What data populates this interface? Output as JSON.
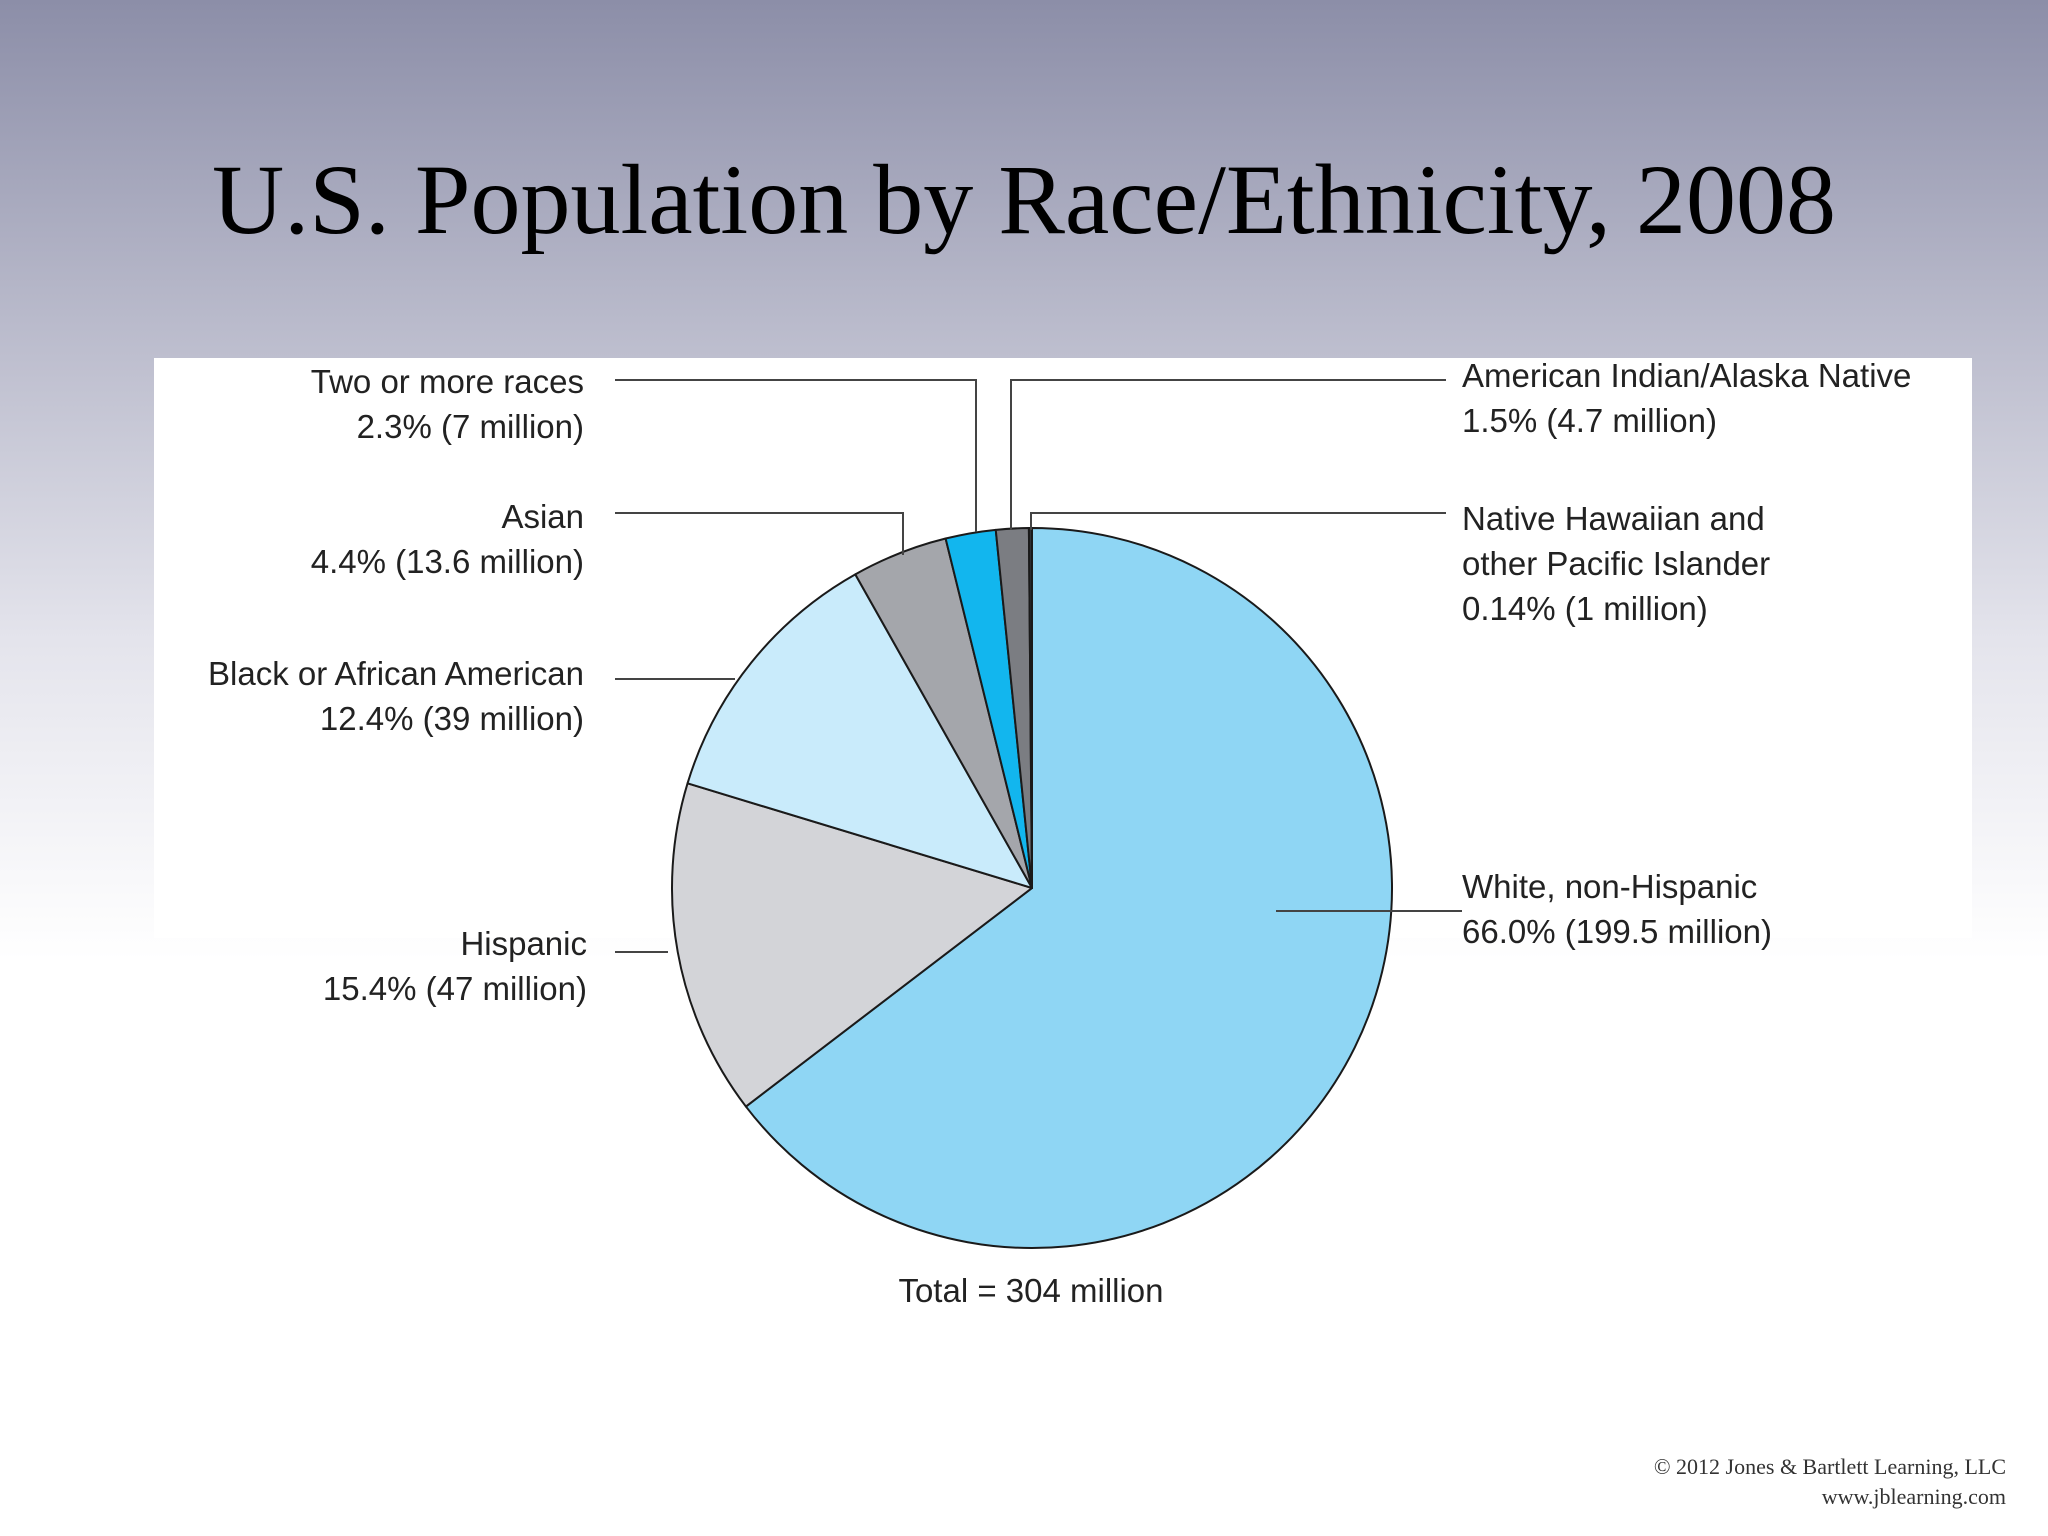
{
  "title": "U.S. Population by Race/Ethnicity, 2008",
  "chart_data": {
    "type": "pie",
    "title": "U.S. Population by Race/Ethnicity, 2008",
    "total_label": "Total = 304 million",
    "slices": [
      {
        "name": "White, non-Hispanic",
        "percent": 66.0,
        "value_millions": 199.5,
        "label_lines": [
          "White, non-Hispanic",
          "66.0% (199.5 million)"
        ],
        "color": "#8fd6f4",
        "label_side": "right"
      },
      {
        "name": "Hispanic",
        "percent": 15.4,
        "value_millions": 47,
        "label_lines": [
          "Hispanic",
          "15.4% (47 million)"
        ],
        "color": "#d3d4d8",
        "label_side": "left"
      },
      {
        "name": "Black or African American",
        "percent": 12.4,
        "value_millions": 39,
        "label_lines": [
          "Black or African American",
          "12.4% (39 million)"
        ],
        "color": "#c9ebfb",
        "label_side": "left"
      },
      {
        "name": "Asian",
        "percent": 4.4,
        "value_millions": 13.6,
        "label_lines": [
          "Asian",
          "4.4% (13.6 million)"
        ],
        "color": "#a4a6ab",
        "label_side": "left"
      },
      {
        "name": "Two or more races",
        "percent": 2.3,
        "value_millions": 7,
        "label_lines": [
          "Two or more races",
          "2.3% (7 million)"
        ],
        "color": "#12b6ee",
        "label_side": "left"
      },
      {
        "name": "American Indian/Alaska Native",
        "percent": 1.5,
        "value_millions": 4.7,
        "label_lines": [
          "American Indian/Alaska Native",
          "1.5% (4.7 million)"
        ],
        "color": "#7b7d82",
        "label_side": "right"
      },
      {
        "name": "Native Hawaiian and other Pacific Islander",
        "percent": 0.14,
        "value_millions": 1,
        "label_lines": [
          "Native Hawaiian and",
          "other Pacific Islander",
          "0.14% (1 million)"
        ],
        "color": "#303236",
        "label_side": "right"
      }
    ]
  },
  "copyright": {
    "line1": "© 2012 Jones & Bartlett Learning, LLC",
    "line2": "www.jblearning.com"
  }
}
